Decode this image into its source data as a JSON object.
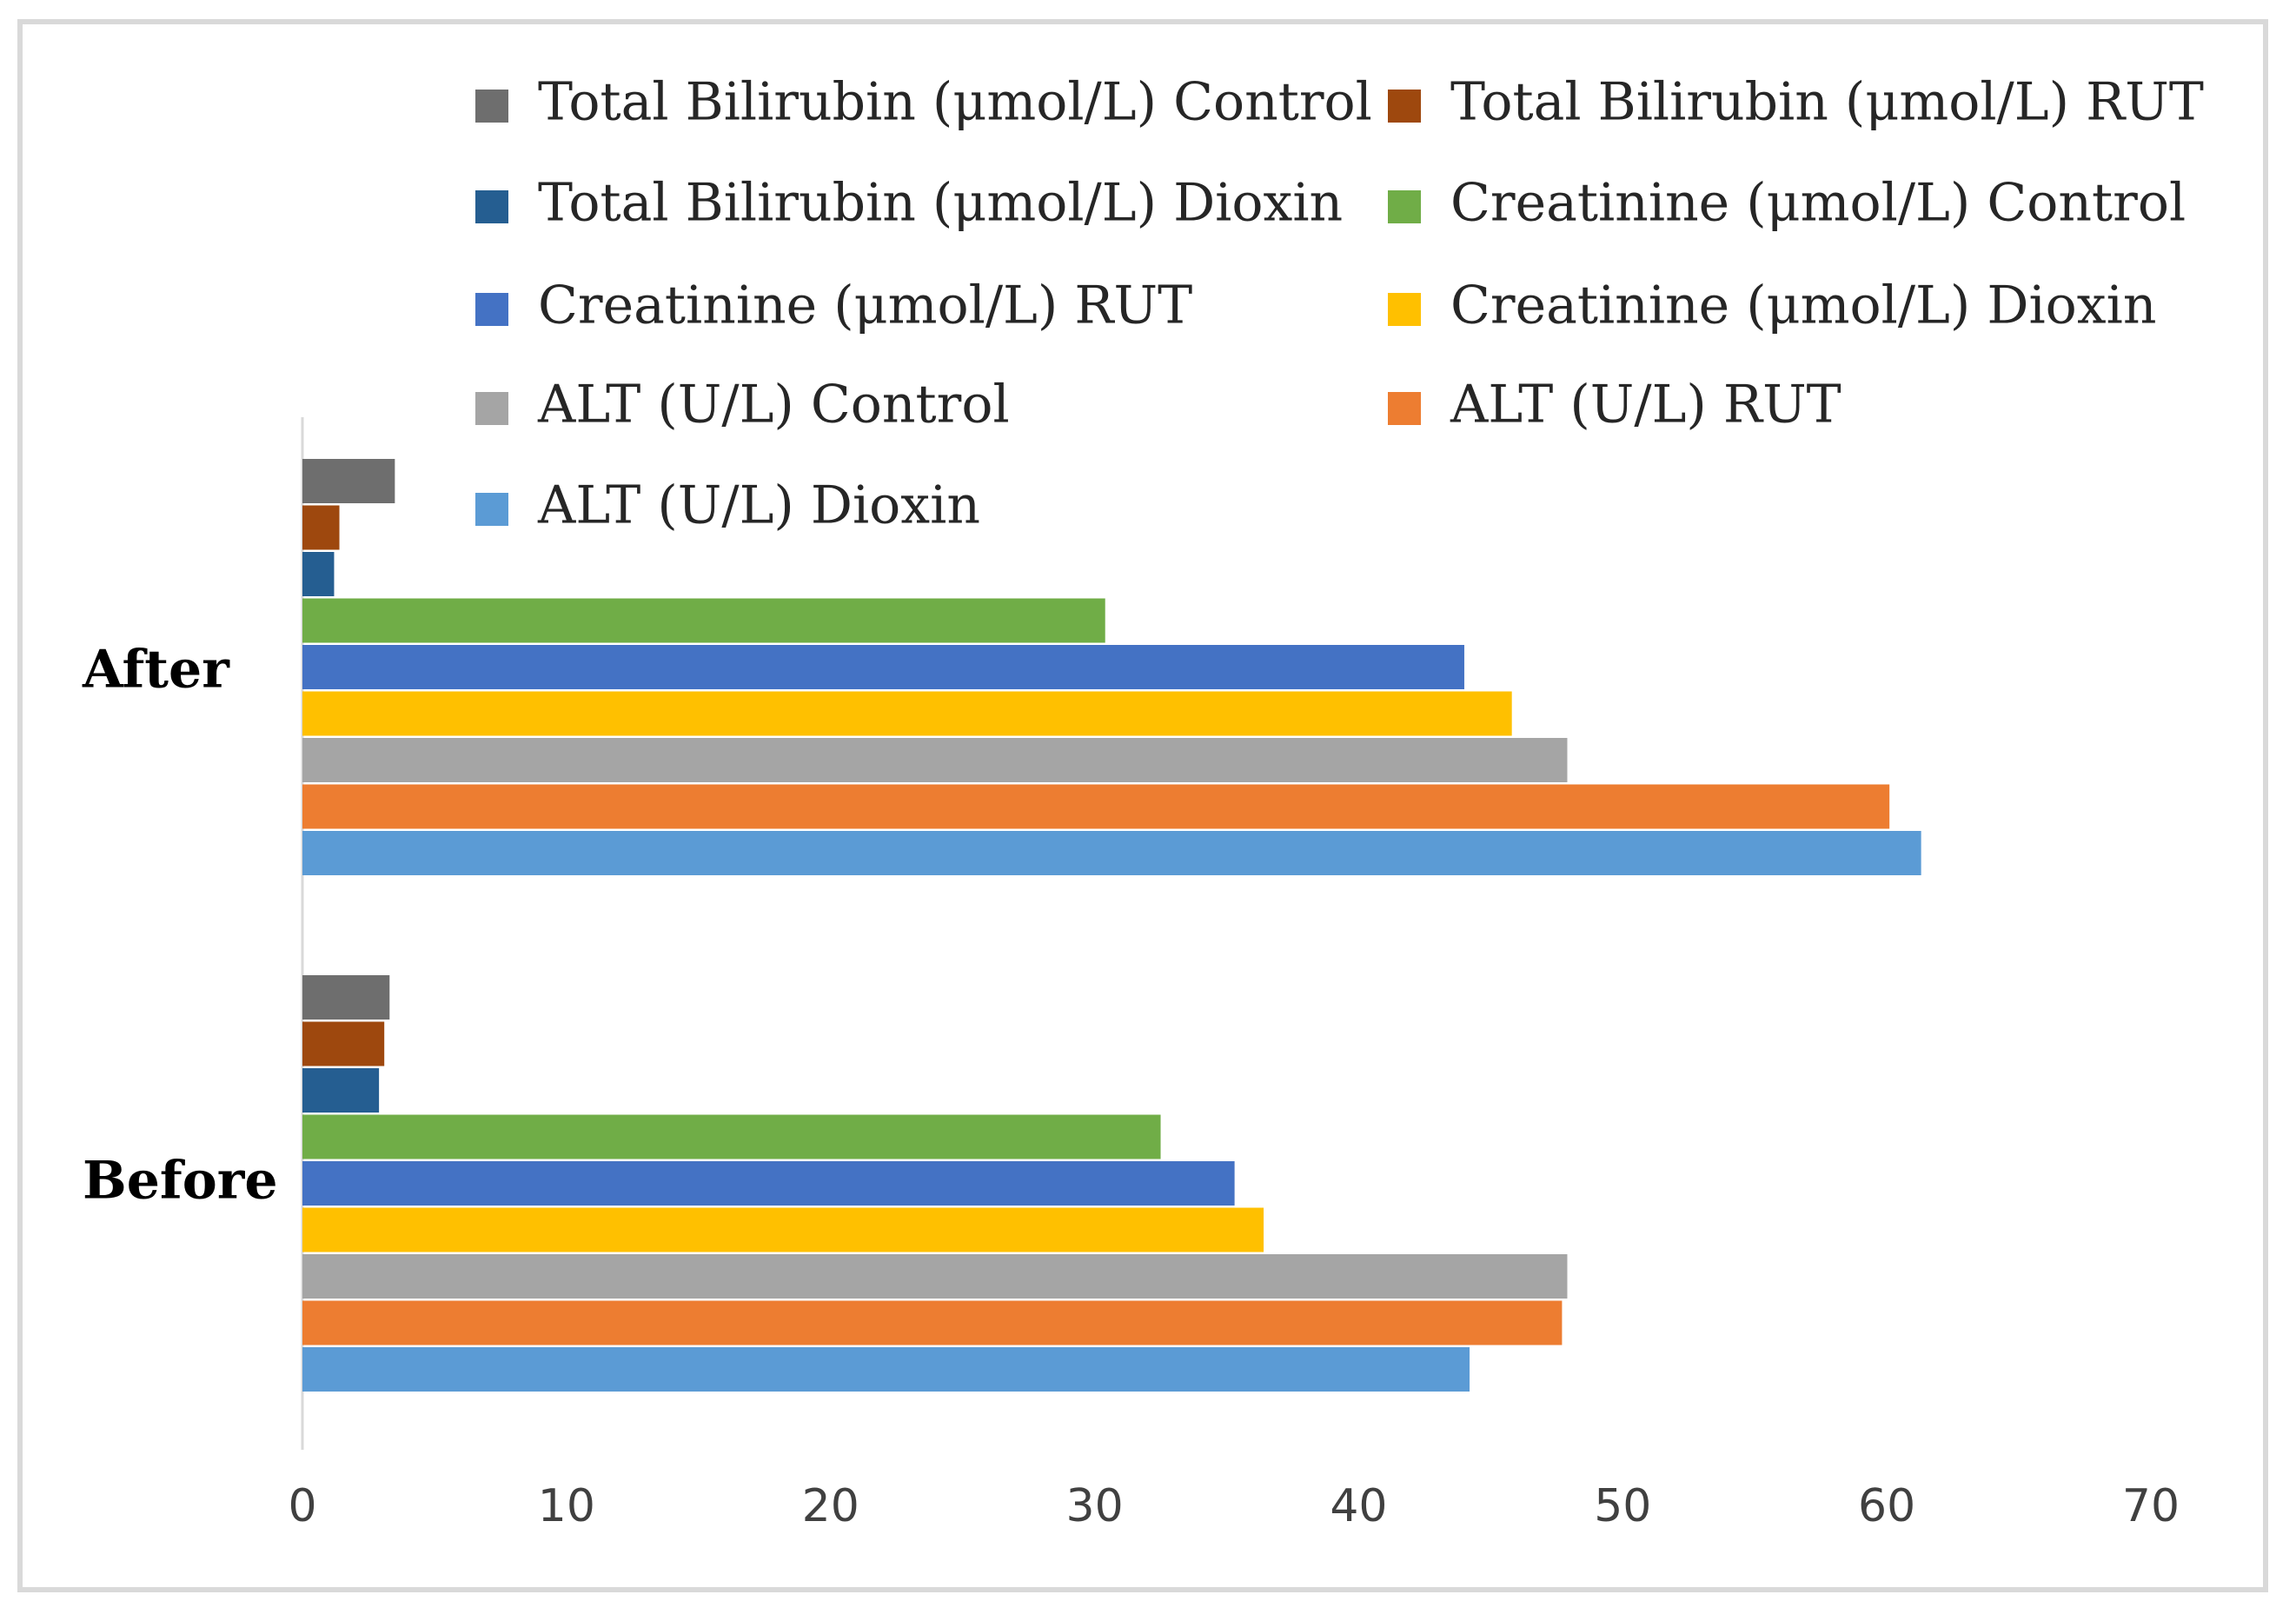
{
  "chart_data": {
    "type": "bar",
    "orientation": "horizontal",
    "categories": [
      "After",
      "Before"
    ],
    "series": [
      {
        "name": "Total Bilirubin (μmol/L) Control",
        "color": "#6e6e6e",
        "values": [
          3.5,
          3.3
        ]
      },
      {
        "name": "Total Bilirubin (μmol/L) RUT",
        "color": "#9e480e",
        "values": [
          1.4,
          3.1
        ]
      },
      {
        "name": "Total Bilirubin (μmol/L) Dioxin",
        "color": "#255e91",
        "values": [
          1.2,
          2.9
        ]
      },
      {
        "name": "Creatinine (μmol/L) Control",
        "color": "#70ad47",
        "values": [
          30.4,
          32.5
        ]
      },
      {
        "name": "Creatinine (μmol/L) RUT",
        "color": "#4472c4",
        "values": [
          44,
          35.3
        ]
      },
      {
        "name": "Creatinine (μmol/L) Dioxin",
        "color": "#ffc000",
        "values": [
          45.8,
          36.4
        ]
      },
      {
        "name": "ALT (U/L) Control",
        "color": "#a5a5a5",
        "values": [
          47.9,
          47.9
        ]
      },
      {
        "name": "ALT (U/L) RUT",
        "color": "#ed7d31",
        "values": [
          60.1,
          47.7
        ]
      },
      {
        "name": "ALT (U/L) Dioxin",
        "color": "#5b9bd5",
        "values": [
          61.3,
          44.2
        ]
      }
    ],
    "xlim": [
      0,
      70
    ],
    "xticks": [
      0,
      10,
      20,
      30,
      40,
      50,
      60,
      70
    ],
    "title": "",
    "xlabel": "",
    "ylabel": "",
    "legend_position": "top-right",
    "grid": false
  }
}
